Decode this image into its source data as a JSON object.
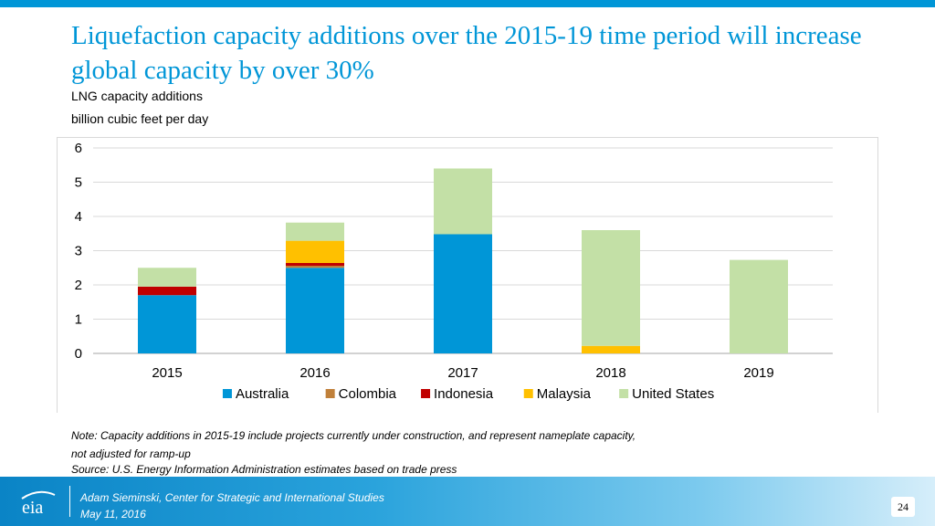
{
  "title": "Liquefaction capacity additions over the 2015-19 time period will increase global capacity by over 30%",
  "subtitle_line1": "LNG capacity additions",
  "subtitle_line2": "billion cubic feet per day",
  "note_line1": "Note: Capacity additions in 2015-19 include projects currently under construction, and represent nameplate capacity,",
  "note_line2": "not adjusted for ramp-up",
  "source": "Source: U.S. Energy Information Administration estimates based on trade press",
  "footer": {
    "logo_text": "eia",
    "presenter": "Adam Sieminski, Center for Strategic and International Studies",
    "date": "May 11, 2016",
    "page_number": "24"
  },
  "chart_data": {
    "type": "bar",
    "stacked": true,
    "categories": [
      "2015",
      "2016",
      "2017",
      "2018",
      "2019"
    ],
    "series": [
      {
        "name": "Australia",
        "color": "#0096d7",
        "values": [
          1.7,
          2.5,
          3.48,
          0,
          0
        ]
      },
      {
        "name": "Colombia",
        "color": "#c0803a",
        "values": [
          0,
          0.06,
          0,
          0,
          0
        ]
      },
      {
        "name": "Indonesia",
        "color": "#c00000",
        "values": [
          0.25,
          0.08,
          0,
          0,
          0
        ]
      },
      {
        "name": "Malaysia",
        "color": "#ffc000",
        "values": [
          0,
          0.65,
          0,
          0.22,
          0
        ]
      },
      {
        "name": "United States",
        "color": "#c3e0a6",
        "values": [
          0.55,
          0.53,
          1.92,
          3.38,
          2.73
        ]
      }
    ],
    "ylim": [
      0,
      6
    ],
    "yticks": [
      0,
      1,
      2,
      3,
      4,
      5,
      6
    ],
    "grid": true,
    "legend_position": "bottom"
  }
}
